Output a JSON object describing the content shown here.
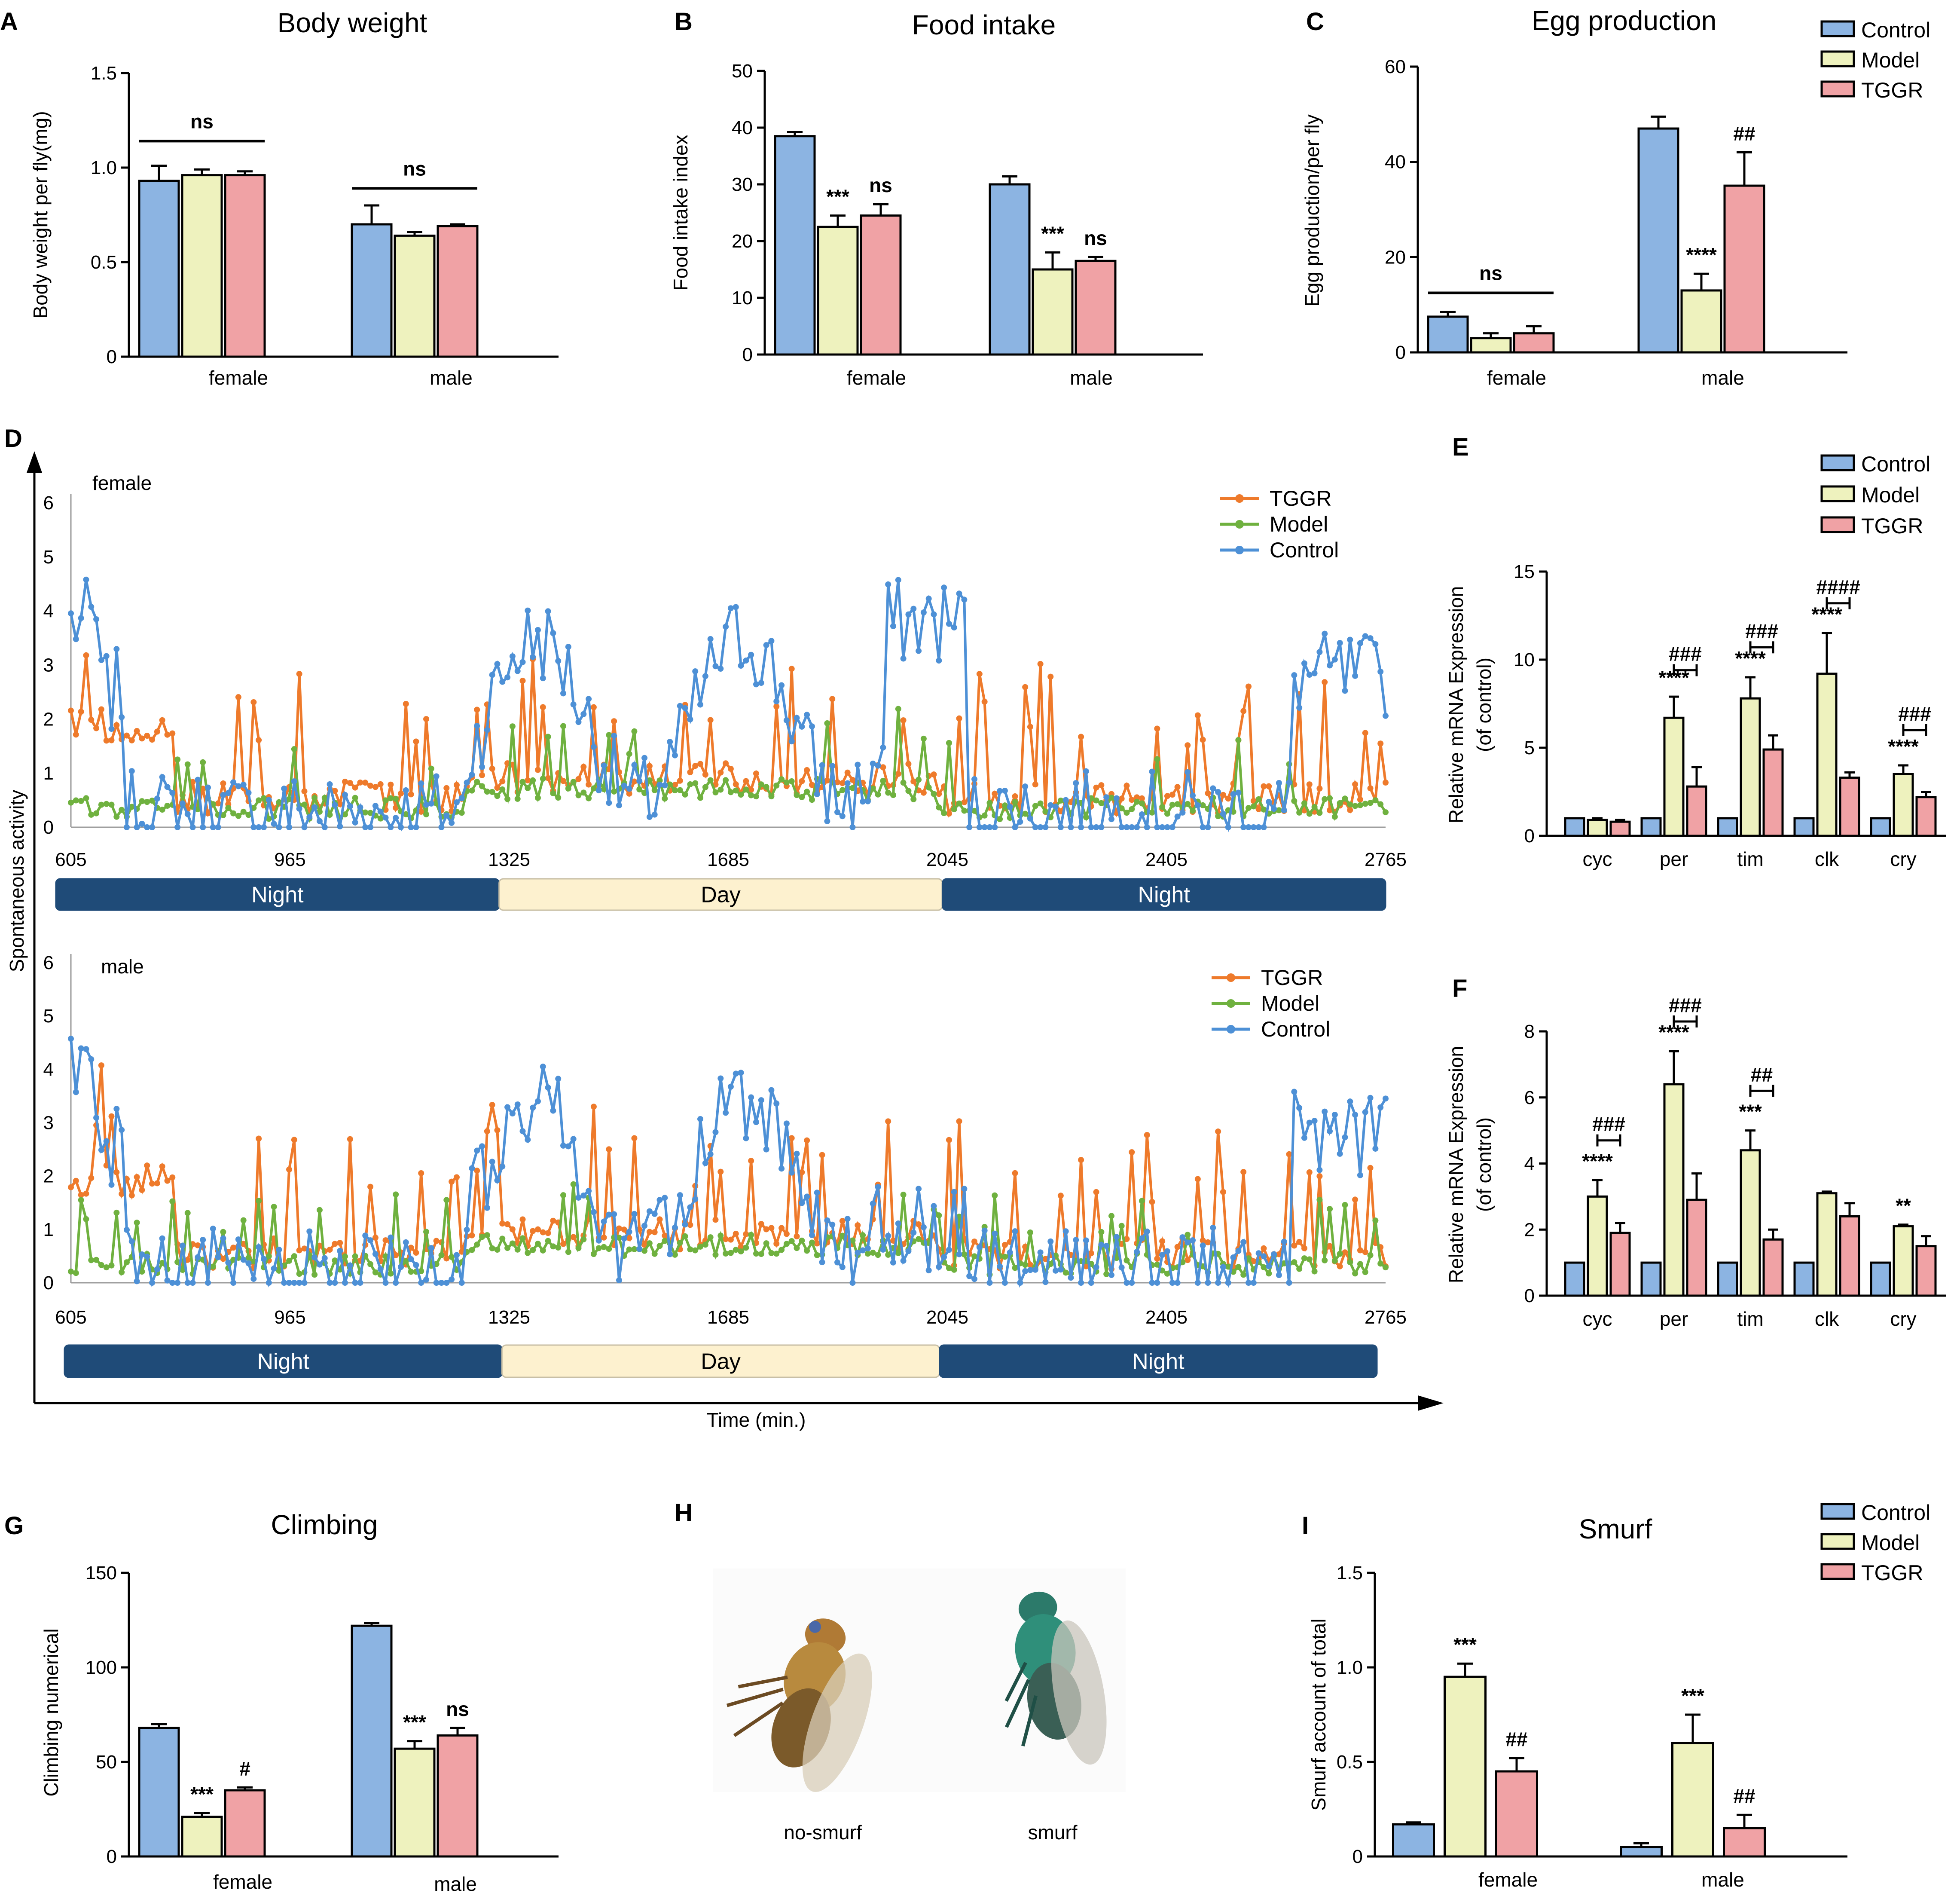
{
  "colors": {
    "control": "#8cb4e2",
    "model": "#eef2be",
    "tggr": "#f0a2a5",
    "line_tggr": "#ee7a2b",
    "line_model": "#6fb13f",
    "line_control": "#4d90d6",
    "night": "#1f4b78",
    "day": "#fdf1cf"
  },
  "legend_bar": [
    "Control",
    "Model",
    "TGGR"
  ],
  "legend_line": [
    "TGGR",
    "Model",
    "Control"
  ],
  "chart_data": [
    {
      "id": "A",
      "type": "bar",
      "panel": "A",
      "title": "Body weight",
      "ylabel": "Body weight per fly(mg)",
      "ylim": [
        0,
        1.5
      ],
      "yticks": [
        "0",
        "0.5",
        "1.0",
        "1.5"
      ],
      "categories": [
        "female",
        "male"
      ],
      "series": [
        {
          "name": "Control",
          "values": [
            0.93,
            0.7
          ],
          "err": [
            0.08,
            0.1
          ]
        },
        {
          "name": "Model",
          "values": [
            0.96,
            0.64
          ],
          "err": [
            0.03,
            0.02
          ]
        },
        {
          "name": "TGGR",
          "values": [
            0.96,
            0.69
          ],
          "err": [
            0.02,
            0.01
          ]
        }
      ],
      "brackets": [
        {
          "label": "ns",
          "y": 1.14,
          "group": 0
        },
        {
          "label": "ns",
          "y": 0.89,
          "group": 1
        }
      ],
      "sig": []
    },
    {
      "id": "B",
      "type": "bar",
      "panel": "B",
      "title": "Food intake",
      "ylabel": "Food intake index",
      "ylim": [
        0,
        50
      ],
      "yticks": [
        "0",
        "10",
        "20",
        "30",
        "40",
        "50"
      ],
      "categories": [
        "female",
        "male"
      ],
      "series": [
        {
          "name": "Control",
          "values": [
            38.5,
            30.0
          ],
          "err": [
            0.7,
            1.4
          ]
        },
        {
          "name": "Model",
          "values": [
            22.5,
            15.0
          ],
          "err": [
            2.0,
            3.0
          ]
        },
        {
          "name": "TGGR",
          "values": [
            24.5,
            16.5
          ],
          "err": [
            2.0,
            0.7
          ]
        }
      ],
      "brackets": [],
      "sig": [
        {
          "group": 0,
          "series": 1,
          "label": "***"
        },
        {
          "group": 0,
          "series": 2,
          "label": "ns"
        },
        {
          "group": 1,
          "series": 1,
          "label": "***"
        },
        {
          "group": 1,
          "series": 2,
          "label": "ns"
        }
      ]
    },
    {
      "id": "C",
      "type": "bar",
      "panel": "C",
      "title": "Egg production",
      "ylabel": "Egg production/per fly",
      "ylim": [
        0,
        60
      ],
      "yticks": [
        "0",
        "20",
        "40",
        "60"
      ],
      "categories": [
        "female",
        "male"
      ],
      "series": [
        {
          "name": "Control",
          "values": [
            7.5,
            47.0
          ],
          "err": [
            1.0,
            2.5
          ]
        },
        {
          "name": "Model",
          "values": [
            3.0,
            13.0
          ],
          "err": [
            1.0,
            3.5
          ]
        },
        {
          "name": "TGGR",
          "values": [
            4.0,
            35.0
          ],
          "err": [
            1.5,
            7.0
          ]
        }
      ],
      "brackets": [
        {
          "label": "ns",
          "y": 12.5,
          "group": 0
        }
      ],
      "sig": [
        {
          "group": 1,
          "series": 1,
          "label": "****"
        },
        {
          "group": 1,
          "series": 2,
          "label": "##"
        }
      ]
    },
    {
      "id": "E",
      "type": "bar",
      "panel": "E",
      "title": "",
      "ylabel": "Relative mRNA Expression",
      "ylabel2": "(of control)",
      "ylim": [
        0,
        15
      ],
      "yticks": [
        "0",
        "5",
        "10",
        "15"
      ],
      "categories": [
        "cyc",
        "per",
        "tim",
        "clk",
        "cry"
      ],
      "series": [
        {
          "name": "Control",
          "values": [
            1,
            1,
            1,
            1,
            1
          ],
          "err": [
            0,
            0,
            0,
            0,
            0
          ]
        },
        {
          "name": "Model",
          "values": [
            0.9,
            6.7,
            7.8,
            9.2,
            3.5
          ],
          "err": [
            0.1,
            1.2,
            1.2,
            2.3,
            0.5
          ]
        },
        {
          "name": "TGGR",
          "values": [
            0.8,
            2.8,
            4.9,
            3.3,
            2.2
          ],
          "err": [
            0.1,
            1.1,
            0.8,
            0.3,
            0.3
          ]
        }
      ],
      "brackets": [],
      "sig": [
        {
          "group": 1,
          "series": 1,
          "label": "****"
        },
        {
          "group": 2,
          "series": 1,
          "label": "****"
        },
        {
          "group": 3,
          "series": 1,
          "label": "****"
        },
        {
          "group": 4,
          "series": 1,
          "label": "****"
        }
      ],
      "hash": [
        {
          "group": 1,
          "label": "###",
          "y": 9.4
        },
        {
          "group": 2,
          "label": "###",
          "y": 10.7
        },
        {
          "group": 3,
          "label": "####",
          "y": 13.2
        },
        {
          "group": 4,
          "label": "###",
          "y": 6.0
        }
      ]
    },
    {
      "id": "F",
      "type": "bar",
      "panel": "F",
      "title": "",
      "ylabel": "Relative mRNA Expression",
      "ylabel2": "(of control)",
      "ylim": [
        0,
        8
      ],
      "yticks": [
        "0",
        "2",
        "4",
        "6",
        "8"
      ],
      "categories": [
        "cyc",
        "per",
        "tim",
        "clk",
        "cry"
      ],
      "series": [
        {
          "name": "Control",
          "values": [
            1,
            1,
            1,
            1,
            1
          ],
          "err": [
            0,
            0,
            0,
            0,
            0
          ]
        },
        {
          "name": "Model",
          "values": [
            3.0,
            6.4,
            4.4,
            3.1,
            2.1
          ],
          "err": [
            0.5,
            1.0,
            0.6,
            0.05,
            0.05
          ]
        },
        {
          "name": "TGGR",
          "values": [
            1.9,
            2.9,
            1.7,
            2.4,
            1.5
          ],
          "err": [
            0.3,
            0.8,
            0.3,
            0.4,
            0.3
          ]
        }
      ],
      "brackets": [],
      "sig": [
        {
          "group": 0,
          "series": 1,
          "label": "****"
        },
        {
          "group": 1,
          "series": 1,
          "label": "****"
        },
        {
          "group": 2,
          "series": 1,
          "label": "***"
        },
        {
          "group": 4,
          "series": 1,
          "label": "**"
        }
      ],
      "hash": [
        {
          "group": 0,
          "label": "###",
          "y": 4.7
        },
        {
          "group": 1,
          "label": "###",
          "y": 8.3
        },
        {
          "group": 2,
          "label": "##",
          "y": 6.2
        }
      ]
    },
    {
      "id": "G",
      "type": "bar",
      "panel": "G",
      "title": "Climbing",
      "ylabel": "Climbing numerical",
      "ylim": [
        0,
        150
      ],
      "yticks": [
        "0",
        "50",
        "100",
        "150"
      ],
      "categories": [
        "female",
        "male"
      ],
      "series": [
        {
          "name": "Control",
          "values": [
            68,
            122
          ],
          "err": [
            2,
            1.5
          ]
        },
        {
          "name": "Model",
          "values": [
            21,
            57
          ],
          "err": [
            2,
            4
          ]
        },
        {
          "name": "TGGR",
          "values": [
            35,
            64
          ],
          "err": [
            1.5,
            4
          ]
        }
      ],
      "brackets": [],
      "sig": [
        {
          "group": 0,
          "series": 1,
          "label": "***"
        },
        {
          "group": 0,
          "series": 2,
          "label": "#"
        },
        {
          "group": 1,
          "series": 1,
          "label": "***"
        },
        {
          "group": 1,
          "series": 2,
          "label": "ns"
        }
      ]
    },
    {
      "id": "I",
      "type": "bar",
      "panel": "I",
      "title": "Smurf",
      "ylabel": "Smurf account of total",
      "ylim": [
        0,
        1.5
      ],
      "yticks": [
        "0",
        "0.5",
        "1.0",
        "1.5"
      ],
      "categories": [
        "female",
        "male"
      ],
      "series": [
        {
          "name": "Control",
          "values": [
            0.17,
            0.05
          ],
          "err": [
            0.01,
            0.02
          ]
        },
        {
          "name": "Model",
          "values": [
            0.95,
            0.6
          ],
          "err": [
            0.07,
            0.15
          ]
        },
        {
          "name": "TGGR",
          "values": [
            0.45,
            0.15
          ],
          "err": [
            0.07,
            0.07
          ]
        }
      ],
      "brackets": [],
      "sig": [
        {
          "group": 0,
          "series": 1,
          "label": "***"
        },
        {
          "group": 0,
          "series": 2,
          "label": "##"
        },
        {
          "group": 1,
          "series": 1,
          "label": "***"
        },
        {
          "group": 1,
          "series": 2,
          "label": "##"
        }
      ]
    },
    {
      "id": "D",
      "type": "line",
      "panel": "D",
      "xlabel": "Time (min.)",
      "ylabel": "Spontaneous activity",
      "xlim": [
        605,
        2765
      ],
      "ylim": [
        0,
        6
      ],
      "xticks": [
        "605",
        "965",
        "1325",
        "1685",
        "2045",
        "2405",
        "2765"
      ],
      "yticks": [
        "0",
        "1",
        "2",
        "3",
        "4",
        "5",
        "6"
      ],
      "periods": [
        "Night",
        "Day",
        "Night"
      ],
      "period_bounds": [
        605,
        1325,
        2045,
        2765
      ],
      "subplots": [
        {
          "label": "female",
          "series": [
            "TGGR",
            "Model",
            "Control"
          ]
        },
        {
          "label": "male",
          "series": [
            "TGGR",
            "Model",
            "Control"
          ]
        }
      ]
    }
  ],
  "panel_h": {
    "label": "H",
    "captions": [
      "no-smurf",
      "smurf"
    ]
  }
}
